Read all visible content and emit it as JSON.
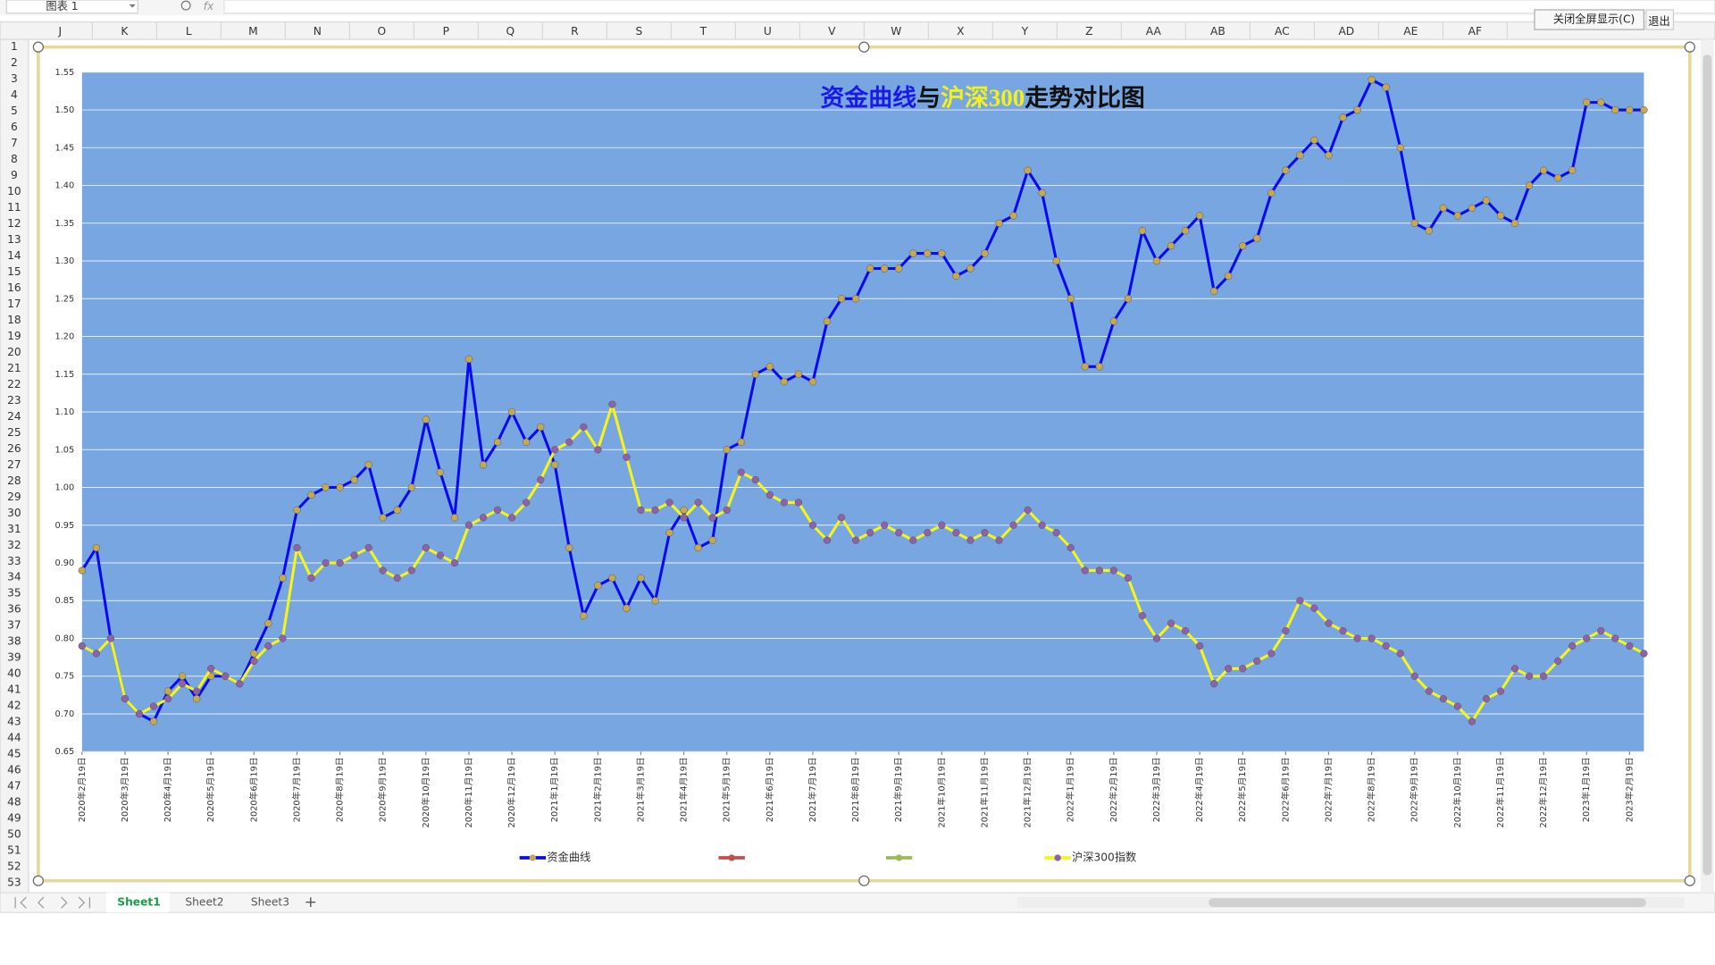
{
  "spreadsheet": {
    "name_box": "图表 1",
    "formula_label": "fx",
    "columns": [
      "J",
      "K",
      "L",
      "M",
      "N",
      "O",
      "P",
      "Q",
      "R",
      "S",
      "T",
      "U",
      "V",
      "W",
      "X",
      "Y",
      "Z",
      "AA",
      "AB",
      "AC",
      "AD",
      "AE",
      "AF"
    ],
    "rows": [
      1,
      2,
      3,
      4,
      5,
      6,
      7,
      8,
      9,
      10,
      11,
      12,
      13,
      14,
      15,
      16,
      17,
      18,
      19,
      20,
      21,
      22,
      23,
      24,
      25,
      26,
      27,
      28,
      29,
      30,
      31,
      32,
      33,
      34,
      35,
      36,
      37,
      38,
      39,
      40,
      41,
      42,
      43,
      44,
      45,
      46,
      47,
      48,
      49,
      50,
      51,
      52,
      53
    ],
    "sheets": [
      "Sheet1",
      "Sheet2",
      "Sheet3"
    ],
    "add_sheet": "+",
    "buttons": [
      "关闭全屏显示(C)",
      "退出"
    ]
  },
  "chart_data": {
    "type": "line",
    "title_parts": [
      {
        "text": "资金曲线",
        "color": "#1a1ae6"
      },
      {
        "text": "与",
        "color": "#111111"
      },
      {
        "text": "沪深300",
        "color": "#f2f21a"
      },
      {
        "text": "走势对比图",
        "color": "#111111"
      }
    ],
    "categories": [
      "2020年2月19日",
      null,
      null,
      "2020年3月19日",
      null,
      null,
      "2020年4月19日",
      null,
      null,
      "2020年5月19日",
      null,
      null,
      "2020年6月19日",
      null,
      null,
      "2020年7月19日",
      null,
      null,
      "2020年8月19日",
      null,
      null,
      "2020年9月19日",
      null,
      null,
      "2020年10月19日",
      null,
      null,
      "2020年11月19日",
      null,
      null,
      "2020年12月19日",
      null,
      null,
      "2021年1月19日",
      null,
      null,
      "2021年2月19日",
      null,
      null,
      "2021年3月19日",
      null,
      null,
      "2021年4月19日",
      null,
      null,
      "2021年5月19日",
      null,
      null,
      "2021年6月19日",
      null,
      null,
      "2021年7月19日",
      null,
      null,
      "2021年8月19日",
      null,
      null,
      "2021年9月19日",
      null,
      null,
      "2021年10月19日",
      null,
      null,
      "2021年11月19日",
      null,
      null,
      "2021年12月19日",
      null,
      null,
      "2022年1月19日",
      null,
      null,
      "2022年2月19日",
      null,
      null,
      "2022年3月19日",
      null,
      null,
      "2022年4月19日",
      null,
      null,
      "2022年5月19日",
      null,
      null,
      "2022年6月19日",
      null,
      null,
      "2022年7月19日",
      null,
      null,
      "2022年8月19日",
      null,
      null,
      "2022年9月19日",
      null,
      null,
      "2022年10月19日",
      null,
      null,
      "2022年11月19日",
      null,
      null,
      "2022年12月19日",
      null,
      null,
      "2023年1月19日",
      null,
      null,
      "2023年2月19日",
      null
    ],
    "series": [
      {
        "name": "资金曲线",
        "color": "#0a0af0",
        "marker_color": "#c8a84c",
        "values": [
          0.89,
          0.92,
          0.8,
          0.72,
          0.7,
          0.69,
          0.73,
          0.75,
          0.72,
          0.75,
          0.75,
          0.74,
          0.78,
          0.82,
          0.88,
          0.97,
          0.99,
          1.0,
          1.0,
          1.01,
          1.03,
          0.96,
          0.97,
          1.0,
          1.09,
          1.02,
          0.96,
          1.17,
          1.03,
          1.06,
          1.1,
          1.06,
          1.08,
          1.03,
          0.92,
          0.83,
          0.87,
          0.88,
          0.84,
          0.88,
          0.85,
          0.94,
          0.97,
          0.92,
          0.93,
          1.05,
          1.06,
          1.15,
          1.16,
          1.14,
          1.15,
          1.14,
          1.22,
          1.25,
          1.25,
          1.29,
          1.29,
          1.29,
          1.31,
          1.31,
          1.31,
          1.28,
          1.29,
          1.31,
          1.35,
          1.36,
          1.42,
          1.39,
          1.3,
          1.25,
          1.16,
          1.16,
          1.22,
          1.25,
          1.34,
          1.3,
          1.32,
          1.34,
          1.36,
          1.26,
          1.28,
          1.32,
          1.33,
          1.39,
          1.42,
          1.44,
          1.46,
          1.44,
          1.49,
          1.5,
          1.54,
          1.53,
          1.45,
          1.35,
          1.34,
          1.37,
          1.36,
          1.37,
          1.38,
          1.36,
          1.35,
          1.4,
          1.42,
          1.41,
          1.42,
          1.51,
          1.51,
          1.5,
          1.5,
          1.5
        ]
      },
      {
        "color": "#c0504d",
        "marker_color": "#c0504d"
      },
      {
        "color": "#9bbb59",
        "marker_color": "#9bbb59"
      },
      {
        "name": "沪深300指数",
        "color": "#f5f51a",
        "marker_color": "#8e62a8",
        "values": [
          0.79,
          0.78,
          0.8,
          0.72,
          0.7,
          0.71,
          0.72,
          0.74,
          0.73,
          0.76,
          0.75,
          0.74,
          0.77,
          0.79,
          0.8,
          0.92,
          0.88,
          0.9,
          0.9,
          0.91,
          0.92,
          0.89,
          0.88,
          0.89,
          0.92,
          0.91,
          0.9,
          0.95,
          0.96,
          0.97,
          0.96,
          0.98,
          1.01,
          1.05,
          1.06,
          1.08,
          1.05,
          1.11,
          1.04,
          0.97,
          0.97,
          0.98,
          0.96,
          0.98,
          0.96,
          0.97,
          1.02,
          1.01,
          0.99,
          0.98,
          0.98,
          0.95,
          0.93,
          0.96,
          0.93,
          0.94,
          0.95,
          0.94,
          0.93,
          0.94,
          0.95,
          0.94,
          0.93,
          0.94,
          0.93,
          0.95,
          0.97,
          0.95,
          0.94,
          0.92,
          0.89,
          0.89,
          0.89,
          0.88,
          0.83,
          0.8,
          0.82,
          0.81,
          0.79,
          0.74,
          0.76,
          0.76,
          0.77,
          0.78,
          0.81,
          0.85,
          0.84,
          0.82,
          0.81,
          0.8,
          0.8,
          0.79,
          0.78,
          0.75,
          0.73,
          0.72,
          0.71,
          0.69,
          0.72,
          0.73,
          0.76,
          0.75,
          0.75,
          0.77,
          0.79,
          0.8,
          0.81,
          0.8,
          0.79,
          0.78
        ]
      }
    ],
    "ylim": [
      0.65,
      1.55
    ],
    "yticks": [
      0.65,
      {
        "value": 0.7,
        "label": "0.70"
      },
      0.75,
      {
        "value": 0.8,
        "label": "0.80"
      },
      0.85,
      {
        "value": 0.9,
        "label": "0.90"
      },
      0.95,
      {
        "value": 1,
        "label": "1.00"
      },
      1.05,
      {
        "value": 1.1,
        "label": "1.10"
      },
      1.15,
      {
        "value": 1.2,
        "label": "1.20"
      },
      1.25,
      {
        "value": 1.3,
        "label": "1.30"
      },
      1.35,
      {
        "value": 1.4,
        "label": "1.40"
      },
      1.45,
      {
        "value": 1.5,
        "label": "1.50"
      },
      1.55
    ],
    "grid": true,
    "legend": "bottom",
    "plot_color": "#78a6e0"
  }
}
